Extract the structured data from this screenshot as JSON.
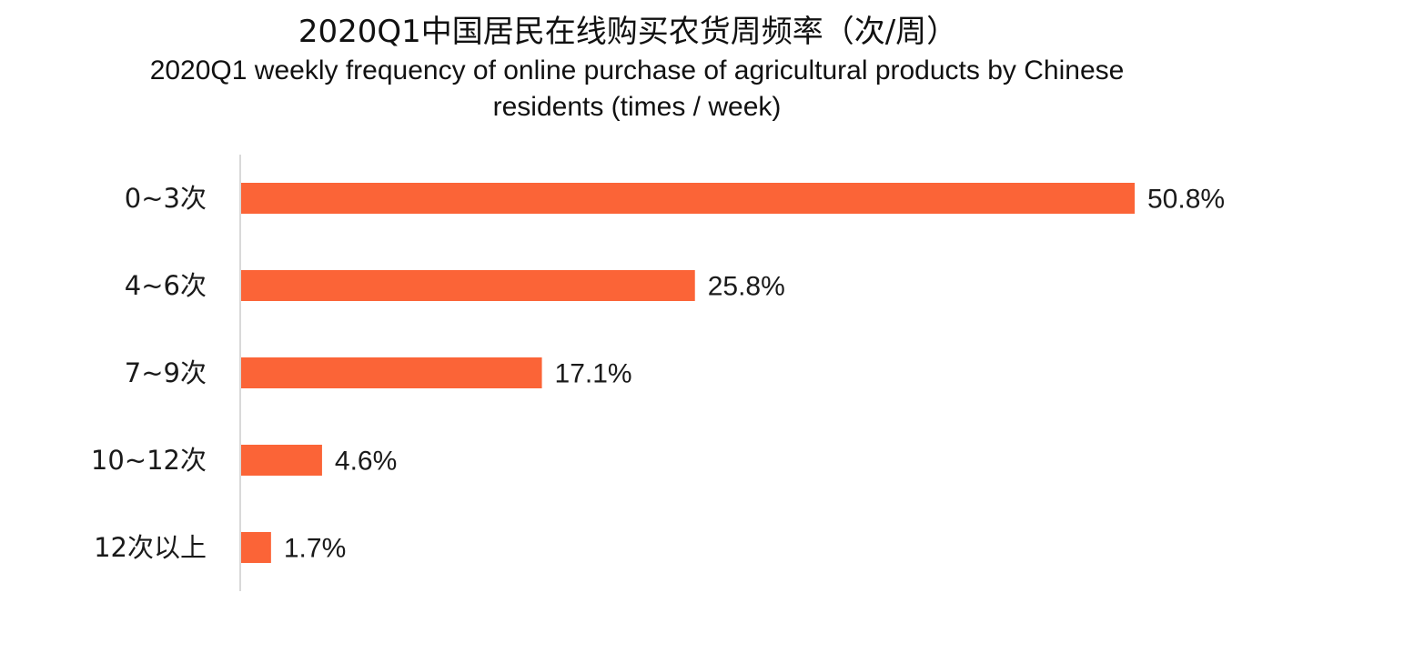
{
  "chart_data": {
    "type": "bar",
    "orientation": "horizontal",
    "title": "2020Q1中国居民在线购买农货周频率（次/周）",
    "subtitle_lines": [
      "2020Q1 weekly frequency of online purchase of agricultural products by Chinese",
      "residents (times / week)"
    ],
    "categories": [
      "0~3次",
      "4~6次",
      "7~9次",
      "10~12次",
      "12次以上"
    ],
    "values": [
      50.8,
      25.8,
      17.1,
      4.6,
      1.7
    ],
    "value_labels": [
      "50.8%",
      "25.8%",
      "17.1%",
      "4.6%",
      "1.7%"
    ],
    "unit": "%",
    "xlim": [
      0,
      50.8
    ],
    "grid": false,
    "legend": "none",
    "bar_color": "#fb6437",
    "axis_color": "#d9d9d9"
  }
}
